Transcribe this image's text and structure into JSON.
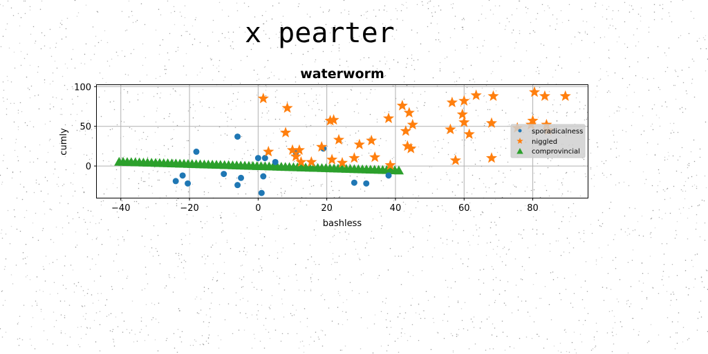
{
  "figure": {
    "suptitle": "x pearter"
  },
  "colors": {
    "series1": "#1f77b4",
    "series2": "#ff7f0e",
    "series3": "#2ca02c",
    "grid": "#b0b0b0"
  },
  "chart_data": {
    "type": "scatter",
    "title": "waterworm",
    "xlabel": "bashless",
    "ylabel": "cumly",
    "xlim": [
      -47,
      96
    ],
    "ylim": [
      -40,
      102
    ],
    "xticks": [
      -40,
      -20,
      0,
      20,
      40,
      60,
      80
    ],
    "xtick_labels": [
      "−40",
      "−20",
      "0",
      "20",
      "40",
      "60",
      "80"
    ],
    "yticks": [
      0,
      50,
      100
    ],
    "ytick_labels": [
      "0",
      "50",
      "100"
    ],
    "grid": true,
    "legend_position": "center-right",
    "series": [
      {
        "name": "sporadicalness",
        "marker": "circle",
        "color": "#1f77b4",
        "points": [
          [
            -24,
            -19
          ],
          [
            -22,
            -12
          ],
          [
            -20.5,
            -22
          ],
          [
            -18,
            18
          ],
          [
            -10,
            -10
          ],
          [
            -6,
            37
          ],
          [
            -6,
            -24
          ],
          [
            -5,
            -15
          ],
          [
            0,
            10
          ],
          [
            1,
            -34
          ],
          [
            1.5,
            -13
          ],
          [
            2,
            10
          ],
          [
            5,
            5
          ],
          [
            11,
            17
          ],
          [
            19,
            22
          ],
          [
            28,
            -21
          ],
          [
            31.5,
            -22
          ],
          [
            38,
            -12
          ]
        ]
      },
      {
        "name": "niggled",
        "marker": "star",
        "color": "#ff7f0e",
        "points": [
          [
            1.5,
            85
          ],
          [
            3,
            18
          ],
          [
            8,
            42
          ],
          [
            8.5,
            73
          ],
          [
            10,
            20
          ],
          [
            11,
            12
          ],
          [
            12,
            20
          ],
          [
            12.5,
            5
          ],
          [
            15.5,
            5
          ],
          [
            18.5,
            24
          ],
          [
            21.5,
            8
          ],
          [
            21,
            57
          ],
          [
            22,
            58
          ],
          [
            23.5,
            33
          ],
          [
            24.5,
            4
          ],
          [
            28,
            10
          ],
          [
            29.5,
            27
          ],
          [
            33,
            32
          ],
          [
            34,
            11
          ],
          [
            38,
            60
          ],
          [
            38.5,
            1
          ],
          [
            42,
            76
          ],
          [
            43,
            44
          ],
          [
            43.5,
            25
          ],
          [
            44,
            67
          ],
          [
            44.5,
            22
          ],
          [
            45,
            52
          ],
          [
            56,
            46
          ],
          [
            56.5,
            80
          ],
          [
            57.5,
            7
          ],
          [
            59.5,
            65
          ],
          [
            60,
            55
          ],
          [
            60,
            82
          ],
          [
            61.5,
            40
          ],
          [
            63.5,
            89
          ],
          [
            68,
            54
          ],
          [
            68,
            10
          ],
          [
            68.5,
            88
          ],
          [
            75.5,
            48
          ],
          [
            79.5,
            52
          ],
          [
            80,
            57
          ],
          [
            80.5,
            93
          ],
          [
            83.5,
            88
          ],
          [
            84,
            52
          ],
          [
            84.5,
            45
          ],
          [
            89.5,
            88
          ]
        ]
      },
      {
        "name": "comprovincial",
        "marker": "triangle",
        "color": "#2ca02c",
        "count": 70,
        "line": {
          "x_start": -40.5,
          "x_end": 41,
          "y_start": 5,
          "y_end": -6
        }
      }
    ]
  }
}
